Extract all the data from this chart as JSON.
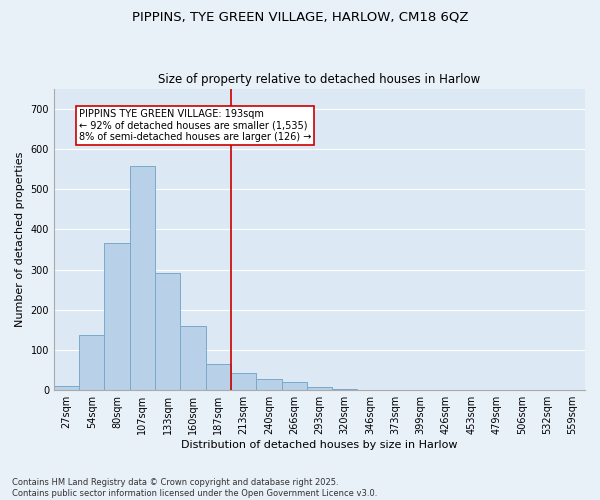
{
  "title": "PIPPINS, TYE GREEN VILLAGE, HARLOW, CM18 6QZ",
  "subtitle": "Size of property relative to detached houses in Harlow",
  "xlabel": "Distribution of detached houses by size in Harlow",
  "ylabel": "Number of detached properties",
  "categories": [
    "27sqm",
    "54sqm",
    "80sqm",
    "107sqm",
    "133sqm",
    "160sqm",
    "187sqm",
    "213sqm",
    "240sqm",
    "266sqm",
    "293sqm",
    "320sqm",
    "346sqm",
    "373sqm",
    "399sqm",
    "426sqm",
    "453sqm",
    "479sqm",
    "506sqm",
    "532sqm",
    "559sqm"
  ],
  "values": [
    10,
    138,
    365,
    558,
    291,
    160,
    65,
    42,
    28,
    20,
    8,
    2,
    0,
    0,
    0,
    0,
    0,
    0,
    0,
    0,
    0
  ],
  "bar_color": "#b8d0e8",
  "bar_edge_color": "#7aaac8",
  "plot_bg_color": "#dce8f4",
  "fig_bg_color": "#e8f0f8",
  "grid_color": "#ffffff",
  "vline_color": "#cc0000",
  "vline_index": 6,
  "annotation_title": "PIPPINS TYE GREEN VILLAGE: 193sqm",
  "annotation_line1": "← 92% of detached houses are smaller (1,535)",
  "annotation_line2": "8% of semi-detached houses are larger (126) →",
  "annotation_box_edge_color": "#cc0000",
  "annotation_box_face_color": "#ffffff",
  "ylim": [
    0,
    750
  ],
  "yticks": [
    0,
    100,
    200,
    300,
    400,
    500,
    600,
    700
  ],
  "title_fontsize": 9.5,
  "subtitle_fontsize": 8.5,
  "xlabel_fontsize": 8,
  "ylabel_fontsize": 8,
  "tick_fontsize": 7,
  "annotation_fontsize": 7,
  "footnote": "Contains HM Land Registry data © Crown copyright and database right 2025.\nContains public sector information licensed under the Open Government Licence v3.0.",
  "footnote_fontsize": 6
}
